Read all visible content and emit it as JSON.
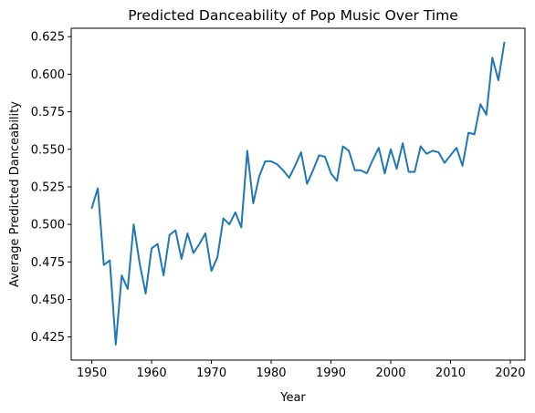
{
  "chart_data": {
    "type": "line",
    "title": "Predicted Danceability of Pop Music Over Time",
    "xlabel": "Year",
    "ylabel": "Average Predicted Danceability",
    "xlim": [
      1946.55,
      2022.45
    ],
    "ylim": [
      0.4096,
      0.6306
    ],
    "xticks": [
      1950,
      1960,
      1970,
      1980,
      1990,
      2000,
      2010,
      2020
    ],
    "yticks": [
      0.425,
      0.45,
      0.475,
      0.5,
      0.525,
      0.55,
      0.575,
      0.6,
      0.625
    ],
    "ytick_labels": [
      "0.425",
      "0.450",
      "0.475",
      "0.500",
      "0.525",
      "0.550",
      "0.575",
      "0.600",
      "0.625"
    ],
    "grid": false,
    "series": [
      {
        "color": "#1f77b4",
        "x": [
          1950,
          1951,
          1952,
          1953,
          1954,
          1955,
          1956,
          1957,
          1958,
          1959,
          1960,
          1961,
          1962,
          1963,
          1964,
          1965,
          1966,
          1967,
          1968,
          1969,
          1970,
          1971,
          1972,
          1973,
          1974,
          1975,
          1976,
          1977,
          1978,
          1979,
          1980,
          1981,
          1982,
          1983,
          1984,
          1985,
          1986,
          1987,
          1988,
          1989,
          1990,
          1991,
          1992,
          1993,
          1994,
          1995,
          1996,
          1997,
          1998,
          1999,
          2000,
          2001,
          2002,
          2003,
          2004,
          2005,
          2006,
          2007,
          2008,
          2009,
          2010,
          2011,
          2012,
          2013,
          2014,
          2015,
          2016,
          2017,
          2018,
          2019
        ],
        "y": [
          0.511,
          0.524,
          0.473,
          0.476,
          0.42,
          0.466,
          0.457,
          0.5,
          0.474,
          0.454,
          0.484,
          0.487,
          0.466,
          0.493,
          0.496,
          0.477,
          0.494,
          0.481,
          0.487,
          0.494,
          0.469,
          0.478,
          0.504,
          0.5,
          0.508,
          0.498,
          0.549,
          0.514,
          0.532,
          0.542,
          0.542,
          0.54,
          0.536,
          0.531,
          0.539,
          0.548,
          0.527,
          0.536,
          0.546,
          0.545,
          0.534,
          0.529,
          0.552,
          0.549,
          0.536,
          0.536,
          0.534,
          0.543,
          0.551,
          0.534,
          0.55,
          0.537,
          0.554,
          0.535,
          0.535,
          0.552,
          0.547,
          0.549,
          0.548,
          0.541,
          0.546,
          0.551,
          0.539,
          0.561,
          0.56,
          0.58,
          0.573,
          0.611,
          0.596,
          0.621
        ]
      }
    ]
  }
}
